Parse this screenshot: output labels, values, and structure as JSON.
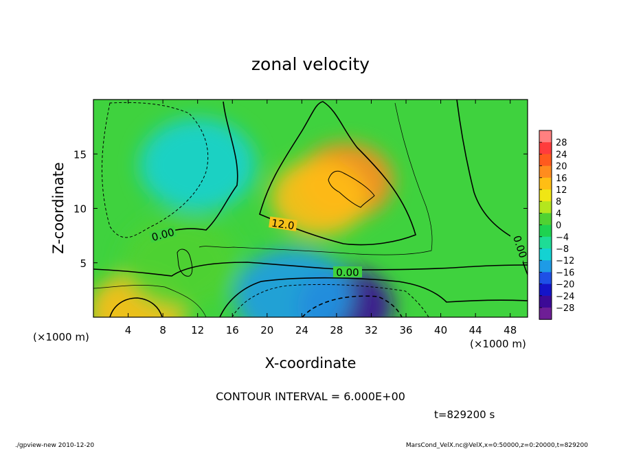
{
  "chart_data": {
    "type": "heatmap",
    "title": "zonal velocity",
    "xlabel": "X-coordinate",
    "ylabel": "Z-coordinate",
    "x_unit_label": "(×1000 m)",
    "y_unit_label": "(×1000 m)",
    "xlim": [
      0,
      50
    ],
    "ylim": [
      0,
      20
    ],
    "x_ticks": [
      4,
      8,
      12,
      16,
      20,
      24,
      28,
      32,
      36,
      40,
      44,
      48
    ],
    "y_ticks": [
      5,
      10,
      15
    ],
    "colorbar": {
      "labels": [
        "28",
        "24",
        "20",
        "16",
        "12",
        "8",
        "4",
        "0",
        "−4",
        "−8",
        "−12",
        "−16",
        "−20",
        "−24",
        "−28"
      ],
      "colors": [
        "#ff8080",
        "#ff3c3c",
        "#ff5a1e",
        "#ff8c1e",
        "#ffbe14",
        "#f0e614",
        "#b4e61e",
        "#50d232",
        "#1ed250",
        "#1edc96",
        "#14d2d2",
        "#1e9be6",
        "#1e50e6",
        "#1414c8",
        "#3c0a96",
        "#6e1e96"
      ]
    },
    "contour_labels": [
      "12.0",
      "0.00",
      "0.00",
      "0.00"
    ],
    "contour_interval": "CONTOUR INTERVAL = 6.000E+00",
    "time_label": "t=829200 s",
    "features": [
      {
        "kind": "max",
        "x": 29,
        "z": 12.5,
        "value": 20
      },
      {
        "kind": "positive",
        "x": 26,
        "z": 11,
        "value": 15
      },
      {
        "kind": "min",
        "x": 12,
        "z": 14,
        "value": -10
      },
      {
        "kind": "min",
        "x": 29,
        "z": 1,
        "value": -24
      },
      {
        "kind": "negative",
        "x": 23,
        "z": 2,
        "value": -12
      },
      {
        "kind": "positive",
        "x": 5,
        "z": 0.5,
        "value": 16
      },
      {
        "kind": "positive",
        "x": 10,
        "z": 5,
        "value": 4
      }
    ]
  },
  "footer": {
    "left": "./gpview-new   2010-12-20",
    "right": "MarsCond_VelX.nc@VelX,x=0:50000,z=0:20000,t=829200"
  }
}
